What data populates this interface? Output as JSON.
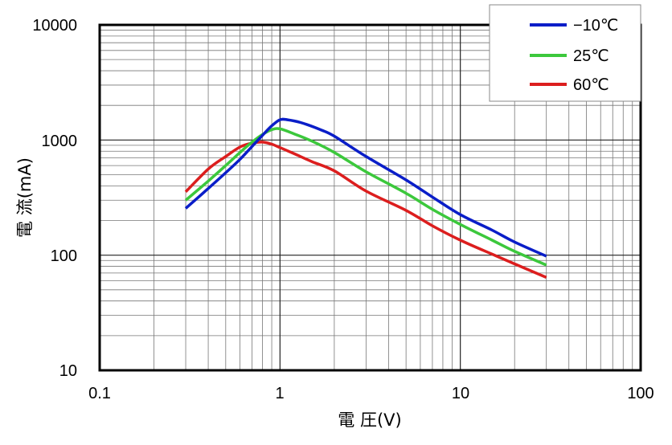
{
  "chart_data": {
    "type": "line",
    "xlabel": "電 圧(V)",
    "ylabel": "電 流(mA)",
    "xscale": "log",
    "yscale": "log",
    "xlim": [
      0.1,
      100
    ],
    "ylim": [
      10,
      10000
    ],
    "grid": true,
    "legend_position": "top-right",
    "x_tick_labels": [
      "0.1",
      "1",
      "10",
      "100"
    ],
    "y_tick_labels": [
      "10",
      "100",
      "1000",
      "10000"
    ],
    "series": [
      {
        "name": "−10℃",
        "color": "#0a1ec8",
        "points": [
          [
            0.3,
            255
          ],
          [
            0.4,
            380
          ],
          [
            0.5,
            520
          ],
          [
            0.6,
            680
          ],
          [
            0.7,
            880
          ],
          [
            0.8,
            1100
          ],
          [
            0.9,
            1330
          ],
          [
            1.0,
            1500
          ],
          [
            1.1,
            1500
          ],
          [
            1.3,
            1420
          ],
          [
            1.7,
            1220
          ],
          [
            2.0,
            1080
          ],
          [
            3.0,
            720
          ],
          [
            5.0,
            450
          ],
          [
            7.0,
            320
          ],
          [
            10.0,
            225
          ],
          [
            15.0,
            165
          ],
          [
            20.0,
            130
          ],
          [
            30.0,
            98
          ]
        ]
      },
      {
        "name": "25℃",
        "color": "#3cc83c",
        "points": [
          [
            0.3,
            300
          ],
          [
            0.4,
            440
          ],
          [
            0.5,
            600
          ],
          [
            0.6,
            780
          ],
          [
            0.7,
            960
          ],
          [
            0.8,
            1120
          ],
          [
            0.9,
            1230
          ],
          [
            1.0,
            1250
          ],
          [
            1.2,
            1130
          ],
          [
            1.5,
            980
          ],
          [
            2.0,
            780
          ],
          [
            3.0,
            530
          ],
          [
            5.0,
            345
          ],
          [
            7.0,
            250
          ],
          [
            10.0,
            185
          ],
          [
            15.0,
            135
          ],
          [
            20.0,
            108
          ],
          [
            30.0,
            82
          ]
        ]
      },
      {
        "name": "60℃",
        "color": "#dc1e1e",
        "points": [
          [
            0.3,
            355
          ],
          [
            0.4,
            560
          ],
          [
            0.5,
            720
          ],
          [
            0.6,
            870
          ],
          [
            0.7,
            940
          ],
          [
            0.8,
            960
          ],
          [
            0.9,
            920
          ],
          [
            1.0,
            860
          ],
          [
            1.2,
            760
          ],
          [
            1.5,
            650
          ],
          [
            2.0,
            540
          ],
          [
            3.0,
            360
          ],
          [
            5.0,
            245
          ],
          [
            7.0,
            180
          ],
          [
            10.0,
            135
          ],
          [
            15.0,
            102
          ],
          [
            20.0,
            84
          ],
          [
            30.0,
            64
          ]
        ]
      }
    ]
  }
}
